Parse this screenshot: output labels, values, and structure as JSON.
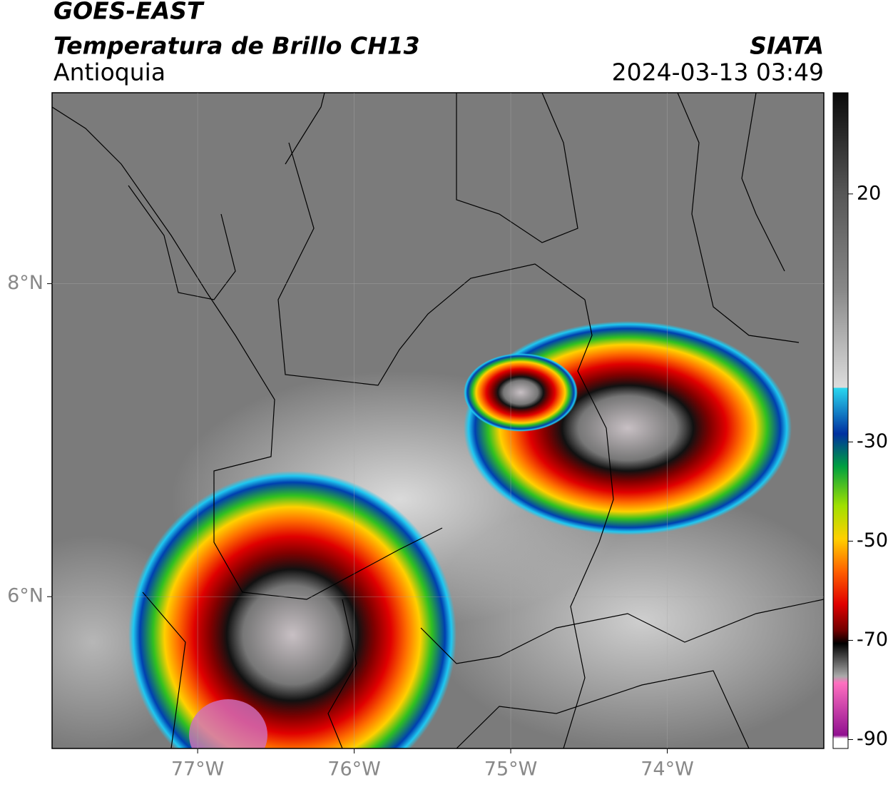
{
  "header": {
    "satellite": "GOES-EAST",
    "title": "Temperatura de Brillo CH13",
    "region": "Antioquia",
    "source": "SIATA",
    "datetime": "2024-03-13 03:49"
  },
  "map": {
    "xlim": [
      -77.93,
      -73.0
    ],
    "ylim": [
      5.03,
      9.22
    ],
    "xticks": [
      {
        "value": -77,
        "label": "77°W"
      },
      {
        "value": -76,
        "label": "76°W"
      },
      {
        "value": -75,
        "label": "75°W"
      },
      {
        "value": -74,
        "label": "74°W"
      }
    ],
    "yticks": [
      {
        "value": 6,
        "label": "6°N"
      },
      {
        "value": 8,
        "label": "8°N"
      }
    ],
    "grid": true
  },
  "colorbar": {
    "lim": [
      -91.8,
      40.4
    ],
    "ticks": [
      20,
      -30,
      -50,
      -70,
      -90
    ]
  }
}
